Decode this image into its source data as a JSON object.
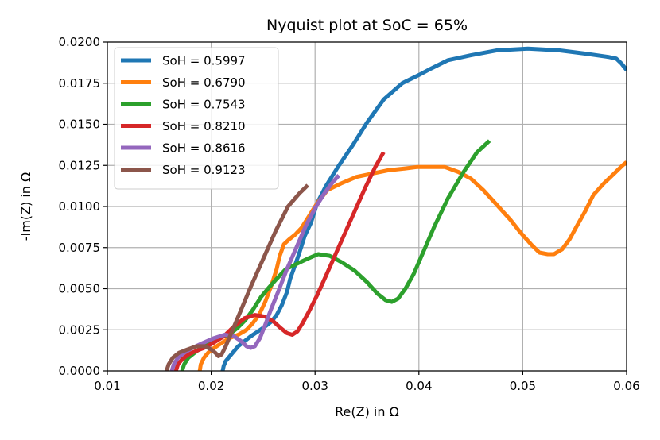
{
  "chart_data": {
    "type": "line",
    "title": "Nyquist plot at SoC = 65%",
    "xlabel": "Re(Z) in Ω",
    "ylabel": "-Im(Z) in Ω",
    "xlim": [
      0.01,
      0.06
    ],
    "ylim": [
      0.0,
      0.02
    ],
    "xticks": [
      0.01,
      0.02,
      0.03,
      0.04,
      0.05,
      0.06
    ],
    "xtick_labels": [
      "0.01",
      "0.02",
      "0.03",
      "0.04",
      "0.05",
      "0.06"
    ],
    "yticks": [
      0.0,
      0.0025,
      0.005,
      0.0075,
      0.01,
      0.0125,
      0.015,
      0.0175,
      0.02
    ],
    "ytick_labels": [
      "0.0000",
      "0.0025",
      "0.0050",
      "0.0075",
      "0.0100",
      "0.0125",
      "0.0150",
      "0.0175",
      "0.0200"
    ],
    "grid": true,
    "legend_position": "top-left",
    "series": [
      {
        "name": "SoH = 0.5997",
        "color": "#1f77b4",
        "x": [
          0.0211,
          0.0212,
          0.0214,
          0.0218,
          0.0222,
          0.0226,
          0.0232,
          0.0238,
          0.0245,
          0.0252,
          0.0258,
          0.0263,
          0.0268,
          0.0273,
          0.0276,
          0.028,
          0.0285,
          0.029,
          0.0296,
          0.0302,
          0.031,
          0.0322,
          0.0336,
          0.035,
          0.0366,
          0.0384,
          0.04,
          0.0412,
          0.0428,
          0.045,
          0.0475,
          0.0505,
          0.0535,
          0.056,
          0.0582,
          0.059,
          0.0595,
          0.06
        ],
        "y": [
          0.0,
          0.0003,
          0.0006,
          0.0009,
          0.0012,
          0.0015,
          0.0018,
          0.0021,
          0.0024,
          0.0027,
          0.003,
          0.0034,
          0.004,
          0.0048,
          0.0056,
          0.0063,
          0.0072,
          0.0082,
          0.009,
          0.0102,
          0.0112,
          0.0124,
          0.0137,
          0.0151,
          0.0165,
          0.0175,
          0.018,
          0.0184,
          0.0189,
          0.0192,
          0.0195,
          0.0196,
          0.0195,
          0.0193,
          0.0191,
          0.019,
          0.0187,
          0.0183
        ]
      },
      {
        "name": "SoH = 0.6790",
        "color": "#ff7f0e",
        "x": [
          0.0189,
          0.019,
          0.0193,
          0.0197,
          0.0203,
          0.021,
          0.0218,
          0.0226,
          0.0234,
          0.024,
          0.0246,
          0.0252,
          0.0258,
          0.0263,
          0.0266,
          0.027,
          0.0275,
          0.0281,
          0.0287,
          0.0292,
          0.0297,
          0.0302,
          0.0312,
          0.0325,
          0.034,
          0.0355,
          0.037,
          0.0385,
          0.0398,
          0.0413,
          0.0425,
          0.0438,
          0.045,
          0.0462,
          0.0475,
          0.0488,
          0.0498,
          0.0508,
          0.0516,
          0.0524,
          0.053,
          0.0538,
          0.0545,
          0.0552,
          0.056,
          0.0568,
          0.0578,
          0.0588,
          0.0596,
          0.06
        ],
        "y": [
          0.0,
          0.0004,
          0.0008,
          0.0011,
          0.0014,
          0.0017,
          0.002,
          0.0022,
          0.0025,
          0.0029,
          0.0034,
          0.0042,
          0.0052,
          0.0062,
          0.007,
          0.0077,
          0.008,
          0.0083,
          0.0087,
          0.0092,
          0.0097,
          0.0102,
          0.011,
          0.0114,
          0.0118,
          0.012,
          0.0122,
          0.0123,
          0.0124,
          0.0124,
          0.0124,
          0.0121,
          0.0117,
          0.011,
          0.0101,
          0.0092,
          0.0084,
          0.0077,
          0.0072,
          0.0071,
          0.0071,
          0.0074,
          0.008,
          0.0088,
          0.0097,
          0.0107,
          0.0114,
          0.012,
          0.0125,
          0.0127
        ]
      },
      {
        "name": "SoH = 0.7543",
        "color": "#2ca02c",
        "x": [
          0.0172,
          0.0174,
          0.0178,
          0.0184,
          0.019,
          0.0198,
          0.0207,
          0.0217,
          0.0225,
          0.0233,
          0.024,
          0.0248,
          0.0256,
          0.0263,
          0.0272,
          0.0282,
          0.0292,
          0.0303,
          0.0314,
          0.0326,
          0.0338,
          0.035,
          0.036,
          0.0368,
          0.0374,
          0.038,
          0.0387,
          0.0395,
          0.0404,
          0.0415,
          0.0428,
          0.0443,
          0.0456,
          0.0468
        ],
        "y": [
          0.0,
          0.0004,
          0.0008,
          0.0011,
          0.0014,
          0.0017,
          0.002,
          0.0022,
          0.0026,
          0.0031,
          0.0037,
          0.0045,
          0.0051,
          0.0056,
          0.0062,
          0.0065,
          0.0068,
          0.0071,
          0.007,
          0.0066,
          0.0061,
          0.0054,
          0.0047,
          0.0043,
          0.0042,
          0.0044,
          0.005,
          0.0059,
          0.0072,
          0.0088,
          0.0105,
          0.0121,
          0.0133,
          0.014
        ]
      },
      {
        "name": "SoH = 0.8210",
        "color": "#d62728",
        "x": [
          0.0166,
          0.0168,
          0.0172,
          0.0178,
          0.0185,
          0.0193,
          0.0202,
          0.0212,
          0.0222,
          0.0232,
          0.0242,
          0.0252,
          0.026,
          0.0267,
          0.0273,
          0.0278,
          0.0283,
          0.0288,
          0.0294,
          0.0302,
          0.0312,
          0.0324,
          0.0336,
          0.0348,
          0.0358,
          0.0366
        ],
        "y": [
          0.0,
          0.0004,
          0.0007,
          0.001,
          0.0012,
          0.0014,
          0.0017,
          0.0021,
          0.0027,
          0.0032,
          0.0034,
          0.0033,
          0.003,
          0.0026,
          0.0023,
          0.0022,
          0.0024,
          0.0029,
          0.0036,
          0.0046,
          0.006,
          0.0077,
          0.0094,
          0.0111,
          0.0124,
          0.0133
        ]
      },
      {
        "name": "SoH = 0.8616",
        "color": "#9467bd",
        "x": [
          0.0162,
          0.0164,
          0.0168,
          0.0174,
          0.0182,
          0.0192,
          0.0203,
          0.0213,
          0.0222,
          0.0229,
          0.0234,
          0.0238,
          0.0242,
          0.0247,
          0.0252,
          0.0258,
          0.0265,
          0.0273,
          0.0282,
          0.0291,
          0.03,
          0.0308,
          0.0316,
          0.0323
        ],
        "y": [
          0.0,
          0.0004,
          0.0008,
          0.0011,
          0.0014,
          0.0017,
          0.002,
          0.0022,
          0.0021,
          0.0018,
          0.0015,
          0.0014,
          0.0015,
          0.002,
          0.0028,
          0.0038,
          0.0049,
          0.0062,
          0.0075,
          0.0088,
          0.0099,
          0.0107,
          0.0114,
          0.0119
        ]
      },
      {
        "name": "SoH = 0.9123",
        "color": "#8c564b",
        "x": [
          0.0157,
          0.0159,
          0.0163,
          0.0169,
          0.0177,
          0.0186,
          0.0194,
          0.02,
          0.0204,
          0.0207,
          0.021,
          0.0214,
          0.022,
          0.0228,
          0.0238,
          0.025,
          0.0262,
          0.0274,
          0.0285,
          0.0293
        ],
        "y": [
          0.0,
          0.0004,
          0.0008,
          0.0011,
          0.0013,
          0.0015,
          0.0015,
          0.0013,
          0.0011,
          0.0009,
          0.001,
          0.0015,
          0.0024,
          0.0036,
          0.0051,
          0.0068,
          0.0085,
          0.01,
          0.0108,
          0.0113
        ]
      }
    ]
  }
}
